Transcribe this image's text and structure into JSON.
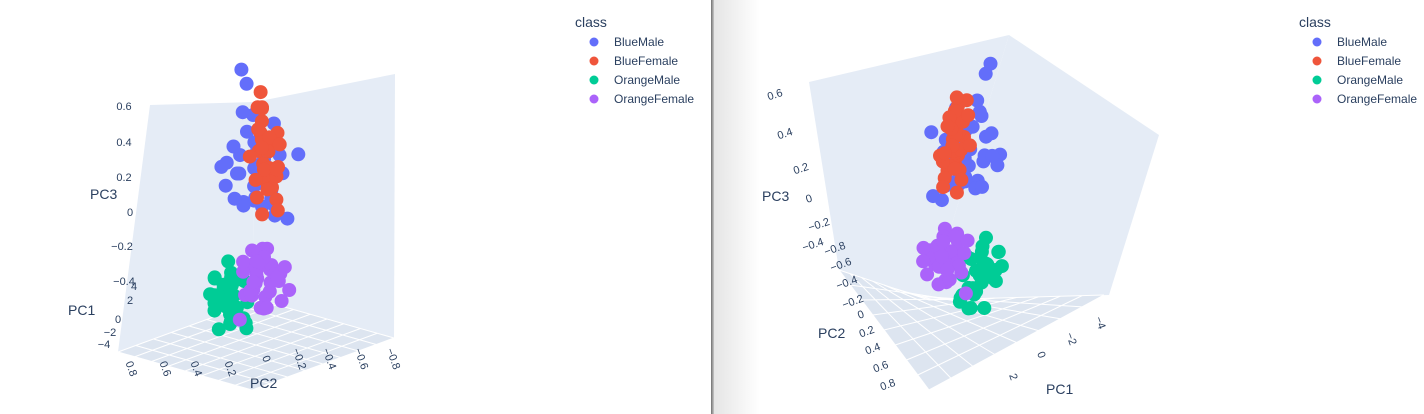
{
  "legend": {
    "title": "class",
    "items": [
      {
        "label": "BlueMale",
        "color": "#636efa"
      },
      {
        "label": "BlueFemale",
        "color": "#ef553b"
      },
      {
        "label": "OrangeMale",
        "color": "#00cc96"
      },
      {
        "label": "OrangeFemale",
        "color": "#ab63fa"
      }
    ]
  },
  "chart_data": [
    {
      "type": "scatter",
      "projection": "3d",
      "view": "left",
      "axes": {
        "x": {
          "title": "PC1",
          "ticks": [
            "4",
            "2",
            "0",
            "−2",
            "−4"
          ]
        },
        "y": {
          "title": "PC2",
          "ticks": [
            "0.8",
            "0.6",
            "0.4",
            "0.2",
            "0",
            "−0.2",
            "−0.4",
            "−0.6",
            "−0.8"
          ]
        },
        "z": {
          "title": "PC3",
          "ticks": [
            "0.6",
            "0.4",
            "0.2",
            "0",
            "−0.2",
            "−0.4"
          ]
        }
      },
      "legend": "top-right",
      "series": [
        {
          "name": "BlueMale",
          "points": [
            [
              -1.2,
              -0.15,
              0.28
            ],
            [
              -0.4,
              -0.05,
              0.18
            ],
            [
              -1.7,
              -0.3,
              0.21
            ],
            [
              0.5,
              0.06,
              0.12
            ],
            [
              -2.1,
              -0.42,
              0.3
            ],
            [
              -0.9,
              -0.22,
              0.35
            ],
            [
              1.1,
              0.2,
              0.05
            ],
            [
              -1.5,
              -0.08,
              0.42
            ],
            [
              -2.6,
              -0.5,
              0.25
            ],
            [
              0.3,
              -0.12,
              0.08
            ],
            [
              -0.7,
              0.02,
              0.15
            ],
            [
              -1.9,
              -0.35,
              0.38
            ],
            [
              1.6,
              0.28,
              0.02
            ],
            [
              -0.2,
              -0.28,
              0.22
            ],
            [
              -1.1,
              -0.4,
              0.12
            ],
            [
              -2.4,
              -0.18,
              0.32
            ],
            [
              0.8,
              0.12,
              0.18
            ],
            [
              -1.4,
              -0.55,
              0.27
            ],
            [
              -0.5,
              0.1,
              0.3
            ],
            [
              -3.0,
              -0.6,
              0.4
            ],
            [
              -0.1,
              0.05,
              0.05
            ],
            [
              -1.8,
              -0.12,
              0.1
            ],
            [
              0.9,
              -0.05,
              0.25
            ],
            [
              -2.2,
              -0.25,
              0.15
            ],
            [
              -0.8,
              -0.48,
              0.36
            ],
            [
              -1.3,
              0.08,
              0.2
            ],
            [
              -2.8,
              -0.32,
              0.1
            ],
            [
              0.2,
              0.22,
              0.14
            ],
            [
              -0.6,
              -0.18,
              0.45
            ],
            [
              -1.6,
              -0.62,
              0.18
            ],
            [
              -3.2,
              -0.45,
              0.22
            ],
            [
              -2.0,
              0.15,
              0.28
            ],
            [
              -1.0,
              -0.35,
              0.6
            ],
            [
              -2.5,
              -0.7,
              0.55
            ],
            [
              -1.4,
              -0.5,
              0.68
            ],
            [
              -0.3,
              -0.2,
              0.38
            ],
            [
              -0.9,
              -0.66,
              0.3
            ],
            [
              0.6,
              -0.3,
              0.16
            ],
            [
              -2.3,
              -0.05,
              0.05
            ],
            [
              -1.7,
              -0.75,
              0.34
            ]
          ]
        },
        {
          "name": "BlueFemale",
          "points": [
            [
              1.2,
              0.45,
              0.25
            ],
            [
              2.0,
              0.55,
              0.18
            ],
            [
              0.8,
              0.3,
              0.1
            ],
            [
              2.8,
              0.62,
              0.28
            ],
            [
              1.5,
              0.5,
              0.05
            ],
            [
              0.4,
              0.2,
              0.15
            ],
            [
              3.2,
              0.7,
              0.32
            ],
            [
              1.9,
              0.4,
              0.2
            ],
            [
              2.5,
              0.58,
              0.12
            ],
            [
              1.1,
              0.35,
              0.22
            ],
            [
              0.6,
              0.38,
              0.03
            ],
            [
              2.2,
              0.48,
              0.26
            ],
            [
              3.6,
              0.78,
              0.3
            ],
            [
              1.7,
              0.6,
              0.08
            ],
            [
              0.9,
              0.25,
              -0.02
            ],
            [
              2.6,
              0.52,
              0.35
            ],
            [
              1.3,
              0.42,
              0.14
            ],
            [
              3.0,
              0.66,
              0.2
            ],
            [
              0.3,
              0.15,
              0.18
            ],
            [
              2.1,
              0.7,
              0.1
            ],
            [
              1.6,
              0.33,
              0.3
            ],
            [
              2.9,
              0.56,
              0.05
            ],
            [
              1.0,
              0.47,
              0.28
            ],
            [
              0.7,
              0.28,
              0.08
            ],
            [
              2.4,
              0.64,
              0.22
            ],
            [
              1.8,
              0.36,
              0.02
            ],
            [
              3.4,
              0.74,
              0.15
            ],
            [
              0.5,
              0.4,
              0.25
            ],
            [
              2.7,
              0.44,
              0.16
            ],
            [
              1.4,
              0.54,
              0.12
            ],
            [
              0.2,
              0.32,
              0.0
            ],
            [
              3.8,
              0.8,
              0.36
            ]
          ]
        },
        {
          "name": "OrangeMale",
          "points": [
            [
              -0.5,
              -0.4,
              -0.25
            ],
            [
              -1.0,
              -0.55,
              -0.3
            ],
            [
              0.2,
              -0.3,
              -0.2
            ],
            [
              -1.5,
              -0.65,
              -0.28
            ],
            [
              0.6,
              -0.22,
              -0.32
            ],
            [
              -0.2,
              -0.48,
              -0.22
            ],
            [
              -1.2,
              -0.38,
              -0.35
            ],
            [
              0.9,
              -0.15,
              -0.26
            ],
            [
              -0.8,
              -0.6,
              -0.18
            ],
            [
              0.4,
              -0.35,
              -0.3
            ],
            [
              -1.8,
              -0.7,
              -0.24
            ],
            [
              0.1,
              -0.25,
              -0.36
            ],
            [
              -0.6,
              -0.52,
              -0.28
            ],
            [
              1.2,
              -0.1,
              -0.22
            ],
            [
              -1.4,
              -0.45,
              -0.32
            ],
            [
              -0.3,
              -0.62,
              -0.26
            ],
            [
              0.7,
              -0.42,
              -0.2
            ],
            [
              -1.0,
              -0.33,
              -0.38
            ],
            [
              0.0,
              -0.56,
              -0.24
            ],
            [
              -2.0,
              -0.75,
              -0.3
            ],
            [
              0.5,
              -0.28,
              -0.28
            ],
            [
              -0.9,
              -0.68,
              -0.22
            ],
            [
              1.0,
              -0.36,
              -0.34
            ],
            [
              -1.6,
              -0.58,
              -0.26
            ],
            [
              -0.4,
              -0.2,
              -0.3
            ],
            [
              0.3,
              -0.5,
              -0.18
            ],
            [
              -1.1,
              -0.72,
              -0.34
            ],
            [
              0.8,
              -0.46,
              -0.26
            ],
            [
              -0.7,
              -0.3,
              -0.2
            ],
            [
              -2.3,
              -0.8,
              -0.28
            ],
            [
              -0.1,
              -0.4,
              -0.12
            ],
            [
              -1.3,
              -0.5,
              -0.16
            ]
          ]
        },
        {
          "name": "OrangeFemale",
          "points": [
            [
              1.5,
              0.3,
              -0.28
            ],
            [
              2.2,
              0.45,
              -0.32
            ],
            [
              0.8,
              0.15,
              -0.22
            ],
            [
              2.8,
              0.55,
              -0.36
            ],
            [
              1.1,
              0.4,
              -0.26
            ],
            [
              3.3,
              0.62,
              -0.3
            ],
            [
              0.5,
              0.22,
              -0.34
            ],
            [
              1.8,
              0.5,
              -0.2
            ],
            [
              2.5,
              0.35,
              -0.38
            ],
            [
              1.3,
              0.58,
              -0.3
            ],
            [
              3.0,
              0.68,
              -0.24
            ],
            [
              0.9,
              0.28,
              -0.4
            ],
            [
              2.0,
              0.6,
              -0.28
            ],
            [
              3.6,
              0.72,
              -0.34
            ],
            [
              1.6,
              0.38,
              -0.42
            ],
            [
              2.7,
              0.48,
              -0.22
            ],
            [
              0.6,
              0.42,
              -0.3
            ],
            [
              2.3,
              0.65,
              -0.36
            ],
            [
              1.2,
              0.2,
              -0.32
            ],
            [
              3.8,
              0.78,
              -0.28
            ],
            [
              1.9,
              0.52,
              -0.44
            ],
            [
              2.9,
              0.4,
              -0.3
            ],
            [
              0.4,
              0.32,
              -0.26
            ],
            [
              2.1,
              0.7,
              -0.34
            ],
            [
              1.4,
              0.46,
              -0.36
            ],
            [
              3.2,
              0.58,
              -0.42
            ],
            [
              0.7,
              0.18,
              -0.2
            ],
            [
              2.6,
              0.62,
              -0.26
            ],
            [
              1.7,
              0.26,
              -0.34
            ],
            [
              3.5,
              0.66,
              -0.38
            ],
            [
              1.0,
              0.54,
              -0.4
            ],
            [
              2.4,
              0.3,
              -0.24
            ],
            [
              0.3,
              0.5,
              -0.34
            ],
            [
              4.0,
              0.8,
              -0.32
            ],
            [
              1.8,
              0.74,
              -0.3
            ],
            [
              2.2,
              0.22,
              -0.46
            ]
          ]
        }
      ]
    },
    {
      "type": "scatter",
      "projection": "3d",
      "view": "right",
      "axes": {
        "x": {
          "title": "PC1",
          "ticks": [
            "2",
            "0",
            "−2",
            "−4"
          ]
        },
        "y": {
          "title": "PC2",
          "ticks": [
            "−0.8",
            "−0.6",
            "−0.4",
            "−0.2",
            "0",
            "0.2",
            "0.4",
            "0.6",
            "0.8"
          ]
        },
        "z": {
          "title": "PC3",
          "ticks": [
            "0.6",
            "0.4",
            "0.2",
            "0",
            "−0.2",
            "−0.4"
          ]
        }
      },
      "legend": "top-right",
      "same_data_as": "left"
    }
  ]
}
